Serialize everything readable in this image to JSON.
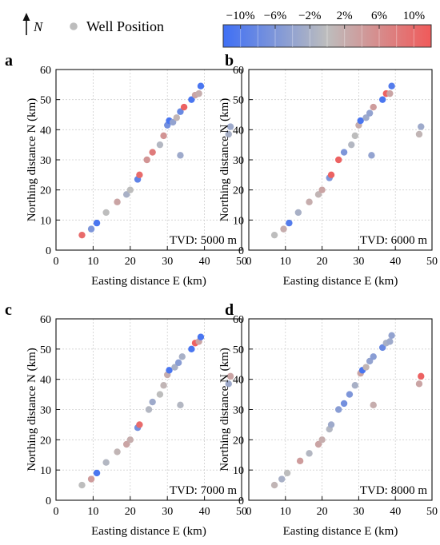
{
  "legend": {
    "north_label": "N",
    "well_label": "Well Position",
    "well_color": "#bdbdbd",
    "colorbar_ticks": [
      "−10%",
      "−6%",
      "−2%",
      "2%",
      "6%",
      "10%"
    ],
    "colorbar_range": [
      -12,
      12
    ],
    "colorbar_colors": {
      "neg": "#3f6ff5",
      "mid": "#bdbdbd",
      "pos": "#f05a5a"
    }
  },
  "chart_data": [
    {
      "type": "scatter",
      "panel": "a",
      "annotation": "TVD: 5000 m",
      "xlabel": "Easting distance E (km)",
      "ylabel": "Northing distance N (km)",
      "xlim": [
        0,
        50
      ],
      "ylim": [
        0,
        60
      ],
      "x_ticks": [
        0,
        10,
        20,
        30,
        40,
        50
      ],
      "y_ticks": [
        0,
        10,
        20,
        30,
        40,
        50,
        60
      ],
      "grid": true,
      "points": [
        {
          "x": 7,
          "y": 5,
          "v": 10
        },
        {
          "x": 9.5,
          "y": 7,
          "v": -6
        },
        {
          "x": 11,
          "y": 9,
          "v": -11
        },
        {
          "x": 13.5,
          "y": 12.5,
          "v": 0
        },
        {
          "x": 16.5,
          "y": 16,
          "v": 3
        },
        {
          "x": 19,
          "y": 18.5,
          "v": -2
        },
        {
          "x": 20,
          "y": 20,
          "v": 0
        },
        {
          "x": 22,
          "y": 23.5,
          "v": -9
        },
        {
          "x": 22.5,
          "y": 25,
          "v": 10
        },
        {
          "x": 24.5,
          "y": 30,
          "v": 5
        },
        {
          "x": 26,
          "y": 32.5,
          "v": 8
        },
        {
          "x": 28,
          "y": 35,
          "v": -1
        },
        {
          "x": 29,
          "y": 38,
          "v": 5
        },
        {
          "x": 30,
          "y": 41.5,
          "v": -7
        },
        {
          "x": 30.5,
          "y": 43,
          "v": -11
        },
        {
          "x": 31.5,
          "y": 42.5,
          "v": -4
        },
        {
          "x": 32.5,
          "y": 44,
          "v": 1
        },
        {
          "x": 33.5,
          "y": 46,
          "v": -8
        },
        {
          "x": 34.5,
          "y": 47.5,
          "v": 11
        },
        {
          "x": 36.5,
          "y": 50,
          "v": -11
        },
        {
          "x": 37.5,
          "y": 51.5,
          "v": 3
        },
        {
          "x": 38.5,
          "y": 52,
          "v": 2
        },
        {
          "x": 39,
          "y": 54.5,
          "v": -11
        },
        {
          "x": 33.5,
          "y": 31.5,
          "v": -3
        },
        {
          "x": 46.5,
          "y": 38.5,
          "v": -2
        },
        {
          "x": 47,
          "y": 41,
          "v": -3
        }
      ]
    },
    {
      "type": "scatter",
      "panel": "b",
      "annotation": "TVD: 6000 m",
      "xlabel": "Easting distance E (km)",
      "ylabel": "Northing distance N (km)",
      "xlim": [
        0,
        50
      ],
      "ylim": [
        0,
        60
      ],
      "x_ticks": [
        0,
        10,
        20,
        30,
        40,
        50
      ],
      "y_ticks": [
        0,
        10,
        20,
        30,
        40,
        50,
        60
      ],
      "grid": true,
      "points": [
        {
          "x": 7,
          "y": 5,
          "v": 0
        },
        {
          "x": 9.5,
          "y": 7,
          "v": 2
        },
        {
          "x": 11,
          "y": 9,
          "v": -10
        },
        {
          "x": 13.5,
          "y": 12.5,
          "v": -2
        },
        {
          "x": 16.5,
          "y": 16,
          "v": 2
        },
        {
          "x": 19,
          "y": 18.5,
          "v": 1
        },
        {
          "x": 20,
          "y": 20,
          "v": 3
        },
        {
          "x": 22,
          "y": 24,
          "v": -6
        },
        {
          "x": 22.5,
          "y": 25,
          "v": 11
        },
        {
          "x": 24.5,
          "y": 30,
          "v": 11
        },
        {
          "x": 26,
          "y": 32.5,
          "v": -6
        },
        {
          "x": 28,
          "y": 35,
          "v": -1
        },
        {
          "x": 29,
          "y": 38,
          "v": 0
        },
        {
          "x": 30,
          "y": 41.5,
          "v": 2
        },
        {
          "x": 30.5,
          "y": 43,
          "v": -11
        },
        {
          "x": 32,
          "y": 44,
          "v": -3
        },
        {
          "x": 33,
          "y": 45.5,
          "v": -4
        },
        {
          "x": 34,
          "y": 47.5,
          "v": 4
        },
        {
          "x": 36.5,
          "y": 50,
          "v": -11
        },
        {
          "x": 37.5,
          "y": 52,
          "v": 11
        },
        {
          "x": 38.5,
          "y": 52,
          "v": 3
        },
        {
          "x": 39,
          "y": 54.5,
          "v": -10
        },
        {
          "x": 33.5,
          "y": 31.5,
          "v": -4
        },
        {
          "x": 46.5,
          "y": 38.5,
          "v": 1
        },
        {
          "x": 47,
          "y": 41,
          "v": -3
        }
      ]
    },
    {
      "type": "scatter",
      "panel": "c",
      "annotation": "TVD: 7000 m",
      "xlabel": "Easting distance E (km)",
      "ylabel": "Northing distance N (km)",
      "xlim": [
        0,
        50
      ],
      "ylim": [
        0,
        60
      ],
      "x_ticks": [
        0,
        10,
        20,
        30,
        40,
        50
      ],
      "y_ticks": [
        0,
        10,
        20,
        30,
        40,
        50,
        60
      ],
      "grid": true,
      "points": [
        {
          "x": 7,
          "y": 5,
          "v": 0
        },
        {
          "x": 9.5,
          "y": 7,
          "v": 4
        },
        {
          "x": 11,
          "y": 9,
          "v": -11
        },
        {
          "x": 13.5,
          "y": 12.5,
          "v": -1
        },
        {
          "x": 16.5,
          "y": 16,
          "v": 1
        },
        {
          "x": 19,
          "y": 18.5,
          "v": 3
        },
        {
          "x": 20,
          "y": 20,
          "v": 2
        },
        {
          "x": 22,
          "y": 24,
          "v": -7
        },
        {
          "x": 22.5,
          "y": 25,
          "v": 10
        },
        {
          "x": 25,
          "y": 30,
          "v": -1
        },
        {
          "x": 26,
          "y": 32.5,
          "v": -3
        },
        {
          "x": 28,
          "y": 35,
          "v": 0
        },
        {
          "x": 29,
          "y": 38,
          "v": 1
        },
        {
          "x": 30,
          "y": 41.5,
          "v": 2
        },
        {
          "x": 30.5,
          "y": 43,
          "v": -11
        },
        {
          "x": 32,
          "y": 44,
          "v": -2
        },
        {
          "x": 33,
          "y": 45.5,
          "v": -5
        },
        {
          "x": 34,
          "y": 47.5,
          "v": -2
        },
        {
          "x": 36.5,
          "y": 50,
          "v": -11
        },
        {
          "x": 37.5,
          "y": 52,
          "v": 11
        },
        {
          "x": 38.5,
          "y": 52.5,
          "v": 3
        },
        {
          "x": 39,
          "y": 54,
          "v": -11
        },
        {
          "x": 33.5,
          "y": 31.5,
          "v": -1
        },
        {
          "x": 46.5,
          "y": 38.5,
          "v": -3
        },
        {
          "x": 47,
          "y": 41,
          "v": 3
        }
      ]
    },
    {
      "type": "scatter",
      "panel": "d",
      "annotation": "TVD: 8000 m",
      "xlabel": "Easting distance E (km)",
      "ylabel": "Northing distance N (km)",
      "xlim": [
        0,
        50
      ],
      "ylim": [
        0,
        60
      ],
      "x_ticks": [
        0,
        10,
        20,
        30,
        40,
        50
      ],
      "y_ticks": [
        0,
        10,
        20,
        30,
        40,
        50,
        60
      ],
      "grid": true,
      "points": [
        {
          "x": 7,
          "y": 5,
          "v": 1
        },
        {
          "x": 9,
          "y": 7,
          "v": -2
        },
        {
          "x": 10.5,
          "y": 9,
          "v": 0
        },
        {
          "x": 14,
          "y": 13,
          "v": 4
        },
        {
          "x": 16.5,
          "y": 15.5,
          "v": -1
        },
        {
          "x": 19,
          "y": 18.5,
          "v": 3
        },
        {
          "x": 20,
          "y": 20,
          "v": 2
        },
        {
          "x": 22,
          "y": 23.5,
          "v": -1
        },
        {
          "x": 22.5,
          "y": 25,
          "v": -3
        },
        {
          "x": 24.5,
          "y": 30,
          "v": -5
        },
        {
          "x": 26,
          "y": 32,
          "v": -7
        },
        {
          "x": 27.5,
          "y": 35,
          "v": -6
        },
        {
          "x": 29,
          "y": 38,
          "v": -2
        },
        {
          "x": 30.5,
          "y": 42,
          "v": 3
        },
        {
          "x": 31,
          "y": 43,
          "v": -11
        },
        {
          "x": 32,
          "y": 44,
          "v": 1
        },
        {
          "x": 33,
          "y": 46,
          "v": -4
        },
        {
          "x": 34,
          "y": 47.5,
          "v": -5
        },
        {
          "x": 36.5,
          "y": 50.5,
          "v": -8
        },
        {
          "x": 37.5,
          "y": 52,
          "v": -2
        },
        {
          "x": 38.5,
          "y": 52.5,
          "v": -3
        },
        {
          "x": 39,
          "y": 54.5,
          "v": -4
        },
        {
          "x": 34,
          "y": 31.5,
          "v": 2
        },
        {
          "x": 46.5,
          "y": 38.5,
          "v": 3
        },
        {
          "x": 47,
          "y": 41,
          "v": 11
        }
      ]
    }
  ]
}
